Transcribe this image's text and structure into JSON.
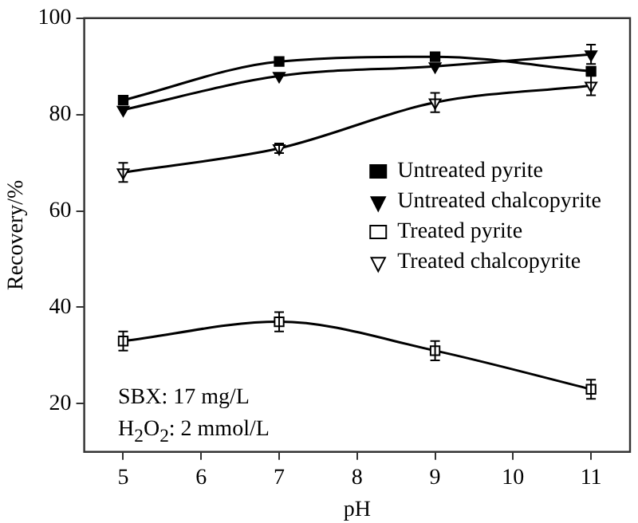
{
  "chart_data": {
    "type": "line",
    "xlabel": "pH",
    "ylabel": "Recovery/%",
    "x": [
      5,
      7,
      9,
      11
    ],
    "xlim": [
      4.5,
      11.5
    ],
    "xticks": [
      5,
      6,
      7,
      8,
      9,
      10,
      11
    ],
    "ylim": [
      10,
      100
    ],
    "yticks": [
      20,
      40,
      60,
      80,
      100
    ],
    "series": [
      {
        "name": "Untreated pyrite",
        "color": "#000000",
        "marker": "square",
        "values": [
          83,
          91,
          92,
          89
        ]
      },
      {
        "name": "Untreated chalcopyrite",
        "color": "#000000",
        "marker": "triangle",
        "values": [
          81,
          88,
          90,
          92.5
        ],
        "errors": [
          null,
          null,
          null,
          2
        ]
      },
      {
        "name": "Treated pyrite",
        "color": "#000000",
        "marker": "square",
        "values": [
          33,
          37,
          31,
          23
        ],
        "errors": [
          2,
          2,
          2,
          2
        ]
      },
      {
        "name": "Treated chalcopyrite",
        "color": "#000000",
        "marker": "triangle",
        "values": [
          68,
          73,
          82.5,
          86
        ],
        "errors": [
          2,
          1,
          2,
          2
        ]
      }
    ],
    "legend": "right",
    "grid": false,
    "line_style": "solid",
    "annotations": [
      "SBX: 17 mg/L",
      "H$_{2}$O$_{2}$: 2 mmol/L"
    ]
  }
}
